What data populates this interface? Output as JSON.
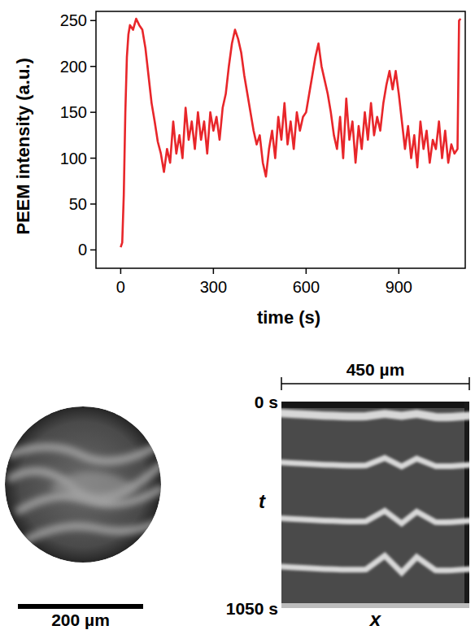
{
  "chart_data": {
    "type": "line",
    "x_label": "time (s)",
    "y_label": "PEEM intensity (a.u.)",
    "color": "#e8262a",
    "xlim": [
      -80,
      1115
    ],
    "ylim": [
      -20,
      260
    ],
    "xticks": [
      0,
      300,
      600,
      900
    ],
    "yticks": [
      0,
      50,
      100,
      150,
      200,
      250
    ],
    "x": [
      0,
      5,
      10,
      15,
      20,
      25,
      30,
      40,
      50,
      60,
      70,
      80,
      90,
      100,
      110,
      120,
      130,
      140,
      150,
      160,
      170,
      180,
      190,
      200,
      210,
      220,
      230,
      240,
      250,
      260,
      270,
      280,
      290,
      300,
      310,
      320,
      330,
      340,
      350,
      360,
      370,
      380,
      390,
      400,
      410,
      420,
      430,
      440,
      450,
      460,
      470,
      480,
      490,
      500,
      510,
      520,
      530,
      540,
      550,
      560,
      570,
      580,
      590,
      600,
      610,
      620,
      630,
      640,
      650,
      660,
      670,
      680,
      690,
      700,
      710,
      720,
      730,
      740,
      750,
      760,
      770,
      780,
      790,
      800,
      810,
      820,
      830,
      840,
      850,
      860,
      870,
      880,
      890,
      900,
      910,
      920,
      930,
      940,
      950,
      960,
      970,
      980,
      990,
      1000,
      1010,
      1020,
      1030,
      1040,
      1050,
      1060,
      1070,
      1080,
      1090,
      1095,
      1100
    ],
    "values": [
      3,
      8,
      60,
      150,
      210,
      235,
      245,
      240,
      252,
      245,
      240,
      220,
      190,
      160,
      140,
      118,
      105,
      85,
      110,
      95,
      140,
      105,
      125,
      100,
      155,
      120,
      140,
      110,
      150,
      120,
      140,
      105,
      150,
      130,
      145,
      120,
      155,
      170,
      200,
      225,
      240,
      230,
      215,
      190,
      170,
      150,
      130,
      115,
      125,
      95,
      80,
      110,
      130,
      100,
      145,
      120,
      160,
      115,
      140,
      110,
      150,
      130,
      145,
      150,
      170,
      190,
      210,
      225,
      200,
      185,
      170,
      150,
      125,
      110,
      145,
      100,
      165,
      120,
      140,
      95,
      135,
      110,
      150,
      120,
      160,
      125,
      145,
      130,
      160,
      180,
      195,
      175,
      195,
      170,
      140,
      110,
      135,
      100,
      125,
      90,
      140,
      110,
      130,
      95,
      120,
      110,
      140,
      100,
      130,
      95,
      115,
      105,
      110,
      250,
      252
    ]
  },
  "panels": {
    "peem_image": {
      "scale_bar": {
        "value": 200,
        "label": "200 µm"
      }
    },
    "kymograph": {
      "width": {
        "value": 450,
        "label": "450 µm"
      },
      "x_label": "x",
      "t_label": "t",
      "t_lim": [
        0,
        1050
      ],
      "t_ticks": [
        {
          "value": 0,
          "label": "0 s"
        },
        {
          "value": 1050,
          "label": "1050 s"
        }
      ],
      "front_times": [
        70,
        320,
        605,
        850
      ]
    }
  }
}
